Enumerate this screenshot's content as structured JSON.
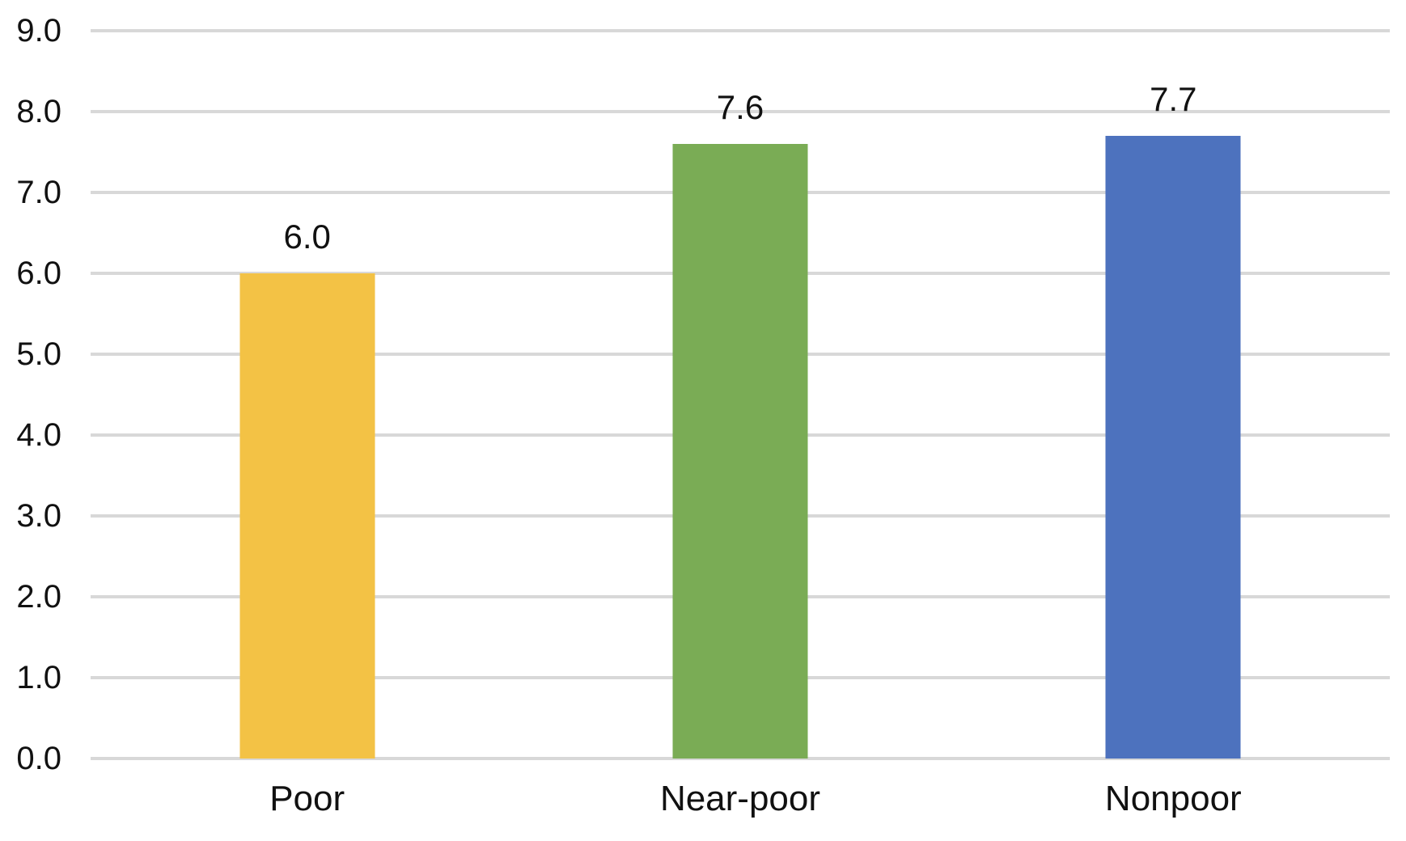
{
  "chart_data": {
    "type": "bar",
    "title": "",
    "xlabel": "",
    "ylabel": "",
    "categories": [
      "Poor",
      "Near-poor",
      "Nonpoor"
    ],
    "values": [
      6.0,
      7.6,
      7.7
    ],
    "value_labels": [
      "6.0",
      "7.6",
      "7.7"
    ],
    "bar_colors": [
      "#F3C245",
      "#7AAC55",
      "#4D72BE"
    ],
    "ylim": [
      0,
      9
    ],
    "ytick_labels": [
      "0.0",
      "1.0",
      "2.0",
      "3.0",
      "4.0",
      "5.0",
      "6.0",
      "7.0",
      "8.0",
      "9.0"
    ],
    "grid": true,
    "gridline_color": "#D8D8D8",
    "text_color": "#111111",
    "background": "#FFFFFF",
    "legend": "none"
  }
}
